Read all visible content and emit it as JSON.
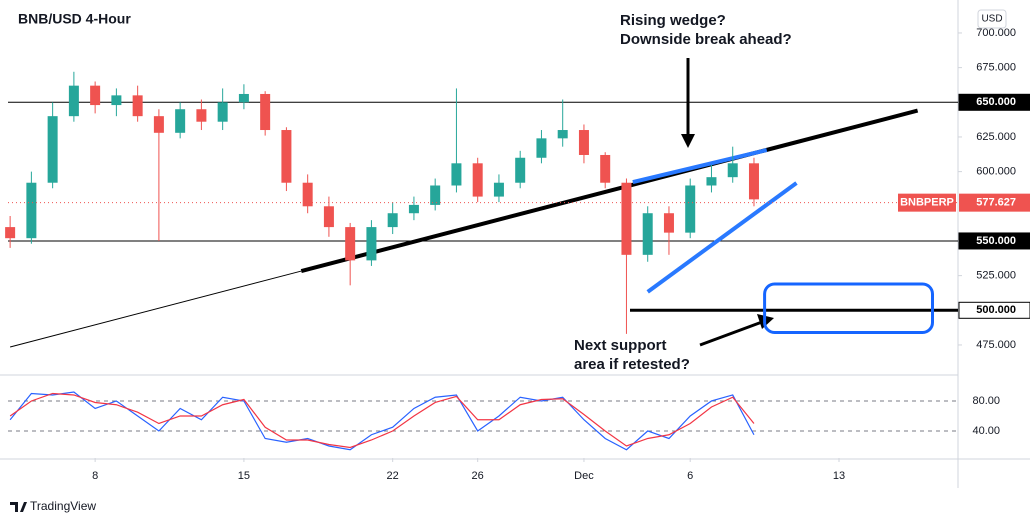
{
  "chart_data": {
    "type": "candlestick",
    "title": "BNB/USD 4-Hour",
    "currency": "USD",
    "symbol": "BNBPERP",
    "last_price": 577.627,
    "annotations": [
      "Rising wedge?",
      "Downside break ahead?",
      "Next support",
      "area if retested?"
    ],
    "branding": "TradingView",
    "x": [
      4,
      5,
      6,
      7,
      8,
      9,
      10,
      11,
      12,
      13,
      14,
      15,
      16,
      17,
      18,
      19,
      20,
      21,
      22,
      23,
      24,
      25,
      26,
      27,
      28,
      29,
      30,
      31,
      32,
      33,
      34,
      35,
      36,
      37,
      38,
      39
    ],
    "open": [
      560,
      552,
      592,
      640,
      662,
      648,
      655,
      640,
      628,
      645,
      636,
      650,
      656,
      630,
      592,
      575,
      560,
      536,
      560,
      570,
      576,
      590,
      606,
      582,
      592,
      610,
      624,
      630,
      612,
      592,
      540,
      570,
      556,
      590,
      596,
      606
    ],
    "high": [
      568,
      600,
      650,
      672,
      665,
      660,
      662,
      645,
      650,
      652,
      660,
      663,
      658,
      632,
      598,
      582,
      563,
      565,
      578,
      582,
      595,
      660,
      610,
      598,
      615,
      630,
      652,
      634,
      614,
      595,
      575,
      575,
      595,
      605,
      618,
      610
    ],
    "low": [
      545,
      548,
      588,
      636,
      642,
      640,
      636,
      550,
      624,
      630,
      630,
      645,
      626,
      586,
      570,
      553,
      518,
      532,
      555,
      565,
      572,
      585,
      578,
      578,
      588,
      606,
      618,
      606,
      588,
      483,
      535,
      540,
      552,
      585,
      592,
      575
    ],
    "close": [
      552,
      592,
      640,
      662,
      648,
      655,
      640,
      628,
      645,
      636,
      650,
      656,
      630,
      592,
      575,
      560,
      536,
      560,
      570,
      576,
      590,
      606,
      582,
      592,
      610,
      624,
      630,
      612,
      592,
      540,
      570,
      556,
      590,
      596,
      606,
      580
    ],
    "up_color": "#26a69a",
    "down_color": "#ef5350",
    "xlim": [
      3.9,
      48.6
    ],
    "xticks": [
      8,
      15,
      22,
      26,
      {
        "value": 31,
        "label": "Dec"
      },
      6,
      13
    ],
    "xtick_days": [
      8,
      15,
      22,
      26,
      31,
      36,
      43
    ],
    "ylim": [
      455.5,
      718
    ],
    "yticks": [
      {
        "value": 700,
        "label": "700.000"
      },
      {
        "value": 675,
        "label": "675.000"
      },
      {
        "value": 625,
        "label": "625.000"
      },
      {
        "value": 600,
        "label": "600.000"
      },
      {
        "value": 525,
        "label": "525.000"
      },
      {
        "value": 475,
        "label": "475.000"
      }
    ],
    "levels": [
      {
        "value": 650,
        "label": "650.000"
      },
      {
        "value": 550,
        "label": "550.000"
      },
      {
        "value": 500,
        "label": "500.000"
      }
    ],
    "trendlines": [
      {
        "x": [
          4,
          17.7
        ],
        "y": [
          473.5,
          528.3
        ],
        "color": "#000000"
      },
      {
        "x": [
          17.7,
          46.7
        ],
        "y": [
          528.3,
          644
        ],
        "color": "#000000"
      },
      {
        "x": [
          33.3,
          39.6
        ],
        "y": [
          592.5,
          615.6
        ],
        "color": "#2979ff"
      },
      {
        "x": [
          34,
          41
        ],
        "y": [
          513.3,
          591.8
        ],
        "color": "#2979ff"
      }
    ],
    "zone": {
      "x": [
        39.5,
        47.4
      ],
      "y": [
        484,
        519
      ],
      "color": "#1565ff"
    },
    "stochastic": {
      "ylim": [
        4,
        113.3
      ],
      "yticks": [
        {
          "value": 80,
          "label": "80.00"
        },
        {
          "value": 40,
          "label": "40.00"
        }
      ],
      "series": [
        {
          "color": "#2962ff",
          "values": [
            55,
            90,
            88,
            92,
            70,
            80,
            60,
            40,
            70,
            55,
            85,
            80,
            30,
            25,
            30,
            20,
            15,
            35,
            45,
            70,
            85,
            88,
            40,
            60,
            85,
            80,
            85,
            55,
            30,
            15,
            40,
            30,
            60,
            80,
            88,
            35
          ]
        },
        {
          "color": "#f23645",
          "values": [
            60,
            80,
            90,
            88,
            78,
            75,
            65,
            50,
            60,
            60,
            75,
            82,
            45,
            28,
            28,
            22,
            18,
            28,
            40,
            60,
            78,
            86,
            55,
            55,
            75,
            82,
            83,
            62,
            40,
            20,
            30,
            35,
            50,
            72,
            85,
            50
          ]
        }
      ]
    }
  }
}
